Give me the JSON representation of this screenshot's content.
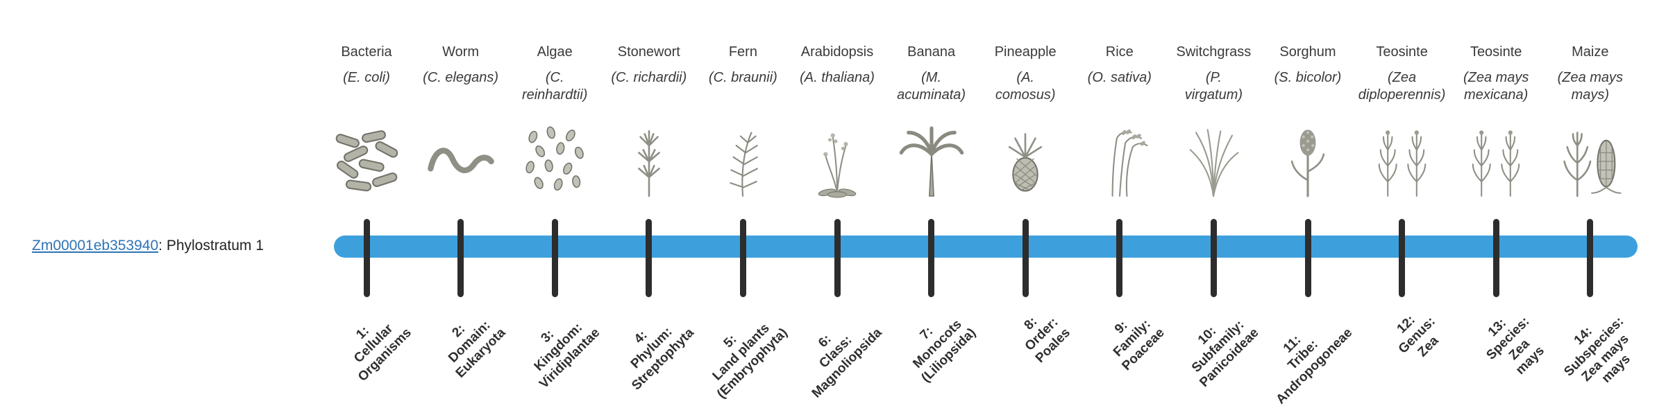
{
  "gene": {
    "id": "Zm00001eb353940",
    "suffix": ": Phylostratum 1"
  },
  "colors": {
    "bar": "#3da0dd",
    "tick": "#2d2d2d",
    "link": "#2e74b5",
    "text": "#3a3a3a"
  },
  "taxa": [
    {
      "common": "Bacteria",
      "sci": "(E. coli)",
      "icon": "bacteria-icon",
      "stratum": "1:\nCellular\nOrganisms"
    },
    {
      "common": "Worm",
      "sci": "(C. elegans)",
      "icon": "worm-icon",
      "stratum": "2:\nDomain:\nEukaryota"
    },
    {
      "common": "Algae",
      "sci": "(C.\nreinhardtii)",
      "icon": "algae-icon",
      "stratum": "3:\nKingdom:\nViridiplantae"
    },
    {
      "common": "Stonewort",
      "sci": "(C. richardii)",
      "icon": "stonewort-icon",
      "stratum": "4:\nPhylum:\nStreptophyta"
    },
    {
      "common": "Fern",
      "sci": "(C. braunii)",
      "icon": "fern-icon",
      "stratum": "5:\nLand plants\n(Embryophyta)"
    },
    {
      "common": "Arabidopsis",
      "sci": "(A. thaliana)",
      "icon": "arabidopsis-icon",
      "stratum": "6:\nClass:\nMagnoliopsida"
    },
    {
      "common": "Banana",
      "sci": "(M.\nacuminata)",
      "icon": "banana-icon",
      "stratum": "7:\nMonocots\n(Liliopsida)"
    },
    {
      "common": "Pineapple",
      "sci": "(A.\ncomosus)",
      "icon": "pineapple-icon",
      "stratum": "8:\nOrder:\nPoales"
    },
    {
      "common": "Rice",
      "sci": "(O. sativa)",
      "icon": "rice-icon",
      "stratum": "9:\nFamily:\nPoaceae"
    },
    {
      "common": "Switchgrass",
      "sci": "(P.\nvirgatum)",
      "icon": "switchgrass-icon",
      "stratum": "10:\nSubfamily:\nPanicoideae"
    },
    {
      "common": "Sorghum",
      "sci": "(S. bicolor)",
      "icon": "sorghum-icon",
      "stratum": "11:\nTribe:\nAndropogoneae"
    },
    {
      "common": "Teosinte",
      "sci": "(Zea\ndiploperennis)",
      "icon": "teosinte-icon",
      "stratum": "12:\nGenus:\nZea"
    },
    {
      "common": "Teosinte",
      "sci": "(Zea mays\nmexicana)",
      "icon": "teosinte-icon",
      "stratum": "13:\nSpecies:\nZea\nmays"
    },
    {
      "common": "Maize",
      "sci": "(Zea mays\nmays)",
      "icon": "maize-icon",
      "stratum": "14:\nSubspecies:\nZea mays\nmays"
    }
  ]
}
